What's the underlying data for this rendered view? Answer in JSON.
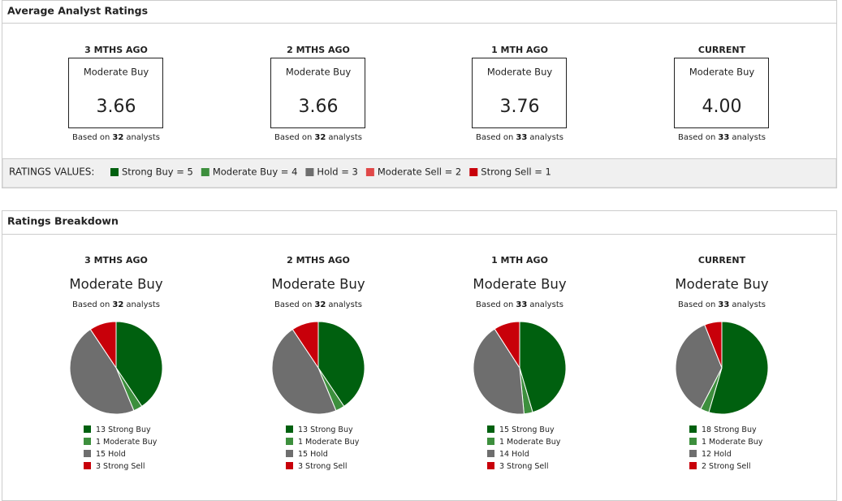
{
  "average_ratings": {
    "title": "Average Analyst Ratings",
    "based_prefix": "Based on",
    "based_suffix": "analysts",
    "columns": [
      {
        "label": "3 MTHS AGO",
        "rating": "Moderate Buy",
        "score": "3.66",
        "analysts": 32
      },
      {
        "label": "2 MTHS AGO",
        "rating": "Moderate Buy",
        "score": "3.66",
        "analysts": 32
      },
      {
        "label": "1 MTH AGO",
        "rating": "Moderate Buy",
        "score": "3.76",
        "analysts": 33
      },
      {
        "label": "CURRENT",
        "rating": "Moderate Buy",
        "score": "4.00",
        "analysts": 33
      }
    ],
    "ratings_values": {
      "label": "RATINGS VALUES:",
      "items": [
        {
          "label": "Strong Buy = 5",
          "color": "#00600f"
        },
        {
          "label": "Moderate Buy = 4",
          "color": "#3d8f3d"
        },
        {
          "label": "Hold = 3",
          "color": "#6e6e6e"
        },
        {
          "label": "Moderate Sell = 2",
          "color": "#e04848"
        },
        {
          "label": "Strong Sell = 1",
          "color": "#c8000a"
        }
      ]
    }
  },
  "ratings_breakdown": {
    "title": "Ratings Breakdown",
    "columns": [
      {
        "label": "3 MTHS AGO",
        "rating": "Moderate Buy",
        "analysts": 32,
        "segments": [
          {
            "name": "Strong Buy",
            "count": 13,
            "color": "#00600f"
          },
          {
            "name": "Moderate Buy",
            "count": 1,
            "color": "#3d8f3d"
          },
          {
            "name": "Hold",
            "count": 15,
            "color": "#6e6e6e"
          },
          {
            "name": "Strong Sell",
            "count": 3,
            "color": "#c8000a"
          }
        ]
      },
      {
        "label": "2 MTHS AGO",
        "rating": "Moderate Buy",
        "analysts": 32,
        "segments": [
          {
            "name": "Strong Buy",
            "count": 13,
            "color": "#00600f"
          },
          {
            "name": "Moderate Buy",
            "count": 1,
            "color": "#3d8f3d"
          },
          {
            "name": "Hold",
            "count": 15,
            "color": "#6e6e6e"
          },
          {
            "name": "Strong Sell",
            "count": 3,
            "color": "#c8000a"
          }
        ]
      },
      {
        "label": "1 MTH AGO",
        "rating": "Moderate Buy",
        "analysts": 33,
        "segments": [
          {
            "name": "Strong Buy",
            "count": 15,
            "color": "#00600f"
          },
          {
            "name": "Moderate Buy",
            "count": 1,
            "color": "#3d8f3d"
          },
          {
            "name": "Hold",
            "count": 14,
            "color": "#6e6e6e"
          },
          {
            "name": "Strong Sell",
            "count": 3,
            "color": "#c8000a"
          }
        ]
      },
      {
        "label": "CURRENT",
        "rating": "Moderate Buy",
        "analysts": 33,
        "segments": [
          {
            "name": "Strong Buy",
            "count": 18,
            "color": "#00600f"
          },
          {
            "name": "Moderate Buy",
            "count": 1,
            "color": "#3d8f3d"
          },
          {
            "name": "Hold",
            "count": 12,
            "color": "#6e6e6e"
          },
          {
            "name": "Strong Sell",
            "count": 2,
            "color": "#c8000a"
          }
        ]
      }
    ]
  }
}
